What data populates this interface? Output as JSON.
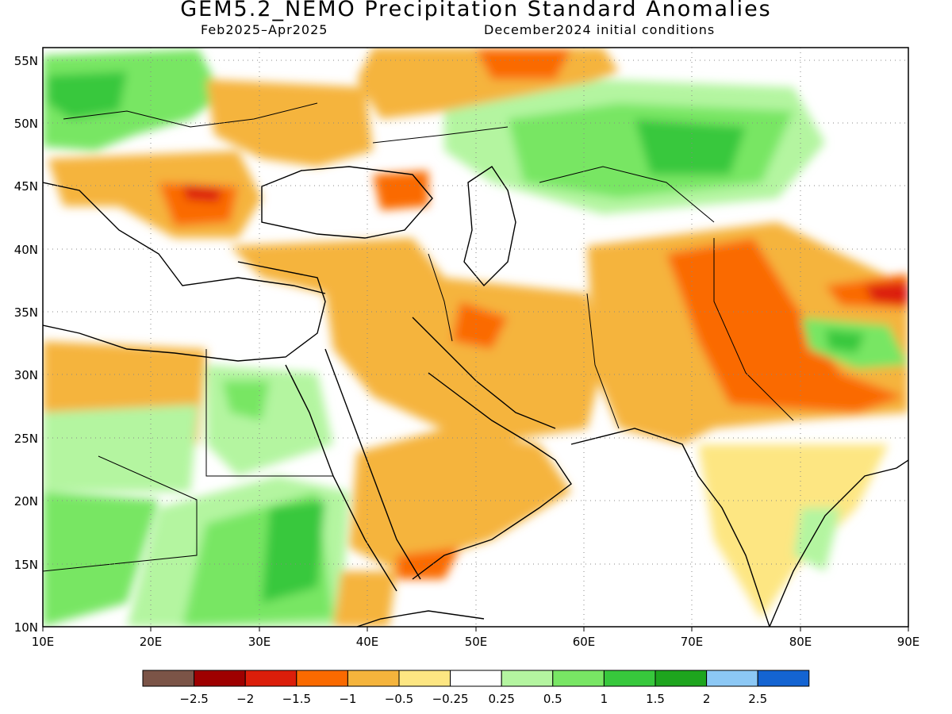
{
  "title": "GEM5.2_NEMO Precipitation Standard Anomalies",
  "period": "Feb2025–Apr2025",
  "init": "December2024 initial conditions",
  "map": {
    "lon_range": [
      10,
      90
    ],
    "lat_range": [
      10,
      56
    ],
    "lon_ticks": [
      "10E",
      "20E",
      "30E",
      "40E",
      "50E",
      "60E",
      "70E",
      "80E",
      "90E"
    ],
    "lat_ticks": [
      "10N",
      "15N",
      "20N",
      "25N",
      "30N",
      "35N",
      "40N",
      "45N",
      "50N",
      "55N"
    ],
    "grid": true
  },
  "legend": {
    "labels": [
      "−2.5",
      "−2",
      "−1.5",
      "−1",
      "−0.5",
      "−0.25",
      "0.25",
      "0.5",
      "1",
      "1.5",
      "2",
      "2.5"
    ],
    "colors": [
      "#7b5447",
      "#9e0000",
      "#dc1e0a",
      "#fa6a00",
      "#f5b43c",
      "#fde682",
      "#ffffff",
      "#b4f5a0",
      "#78e664",
      "#37c83c",
      "#1ea51e",
      "#8cc8f5",
      "#1464d2"
    ]
  }
}
